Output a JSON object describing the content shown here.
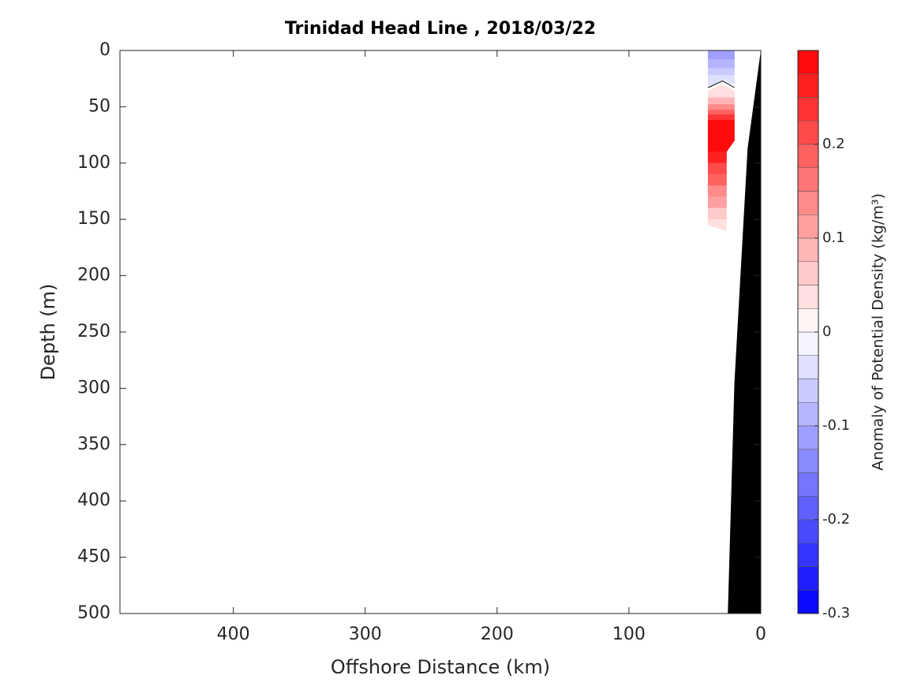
{
  "chart_data": {
    "type": "contour",
    "title": "Trinidad Head Line , 2018/03/22",
    "xlabel": "Offshore Distance (km)",
    "ylabel": "Depth (m)",
    "xlim": [
      486,
      0
    ],
    "xticks": [
      400,
      300,
      200,
      100,
      0
    ],
    "ylim": [
      0,
      500
    ],
    "yticks": [
      0,
      50,
      100,
      150,
      200,
      250,
      300,
      350,
      400,
      450,
      500
    ],
    "colorbar_label": "Anomaly of Potential Density (kg/m³)",
    "clim": [
      -0.3,
      0.3
    ],
    "cticks": [
      0.2,
      0.1,
      0,
      -0.1,
      -0.2,
      -0.3
    ],
    "cmap": [
      "#0000ff",
      "#ffffff",
      "#ff0000"
    ],
    "colorbar_levels": [
      -0.3,
      -0.275,
      -0.25,
      -0.225,
      -0.2,
      -0.175,
      -0.15,
      -0.125,
      -0.1,
      -0.075,
      -0.05,
      -0.025,
      0,
      0.025,
      0.05,
      0.075,
      0.1,
      0.125,
      0.15,
      0.175,
      0.2,
      0.225,
      0.25,
      0.275,
      0.3
    ],
    "regions": [
      {
        "value": -0.1125,
        "x": [
          40,
          20,
          20,
          40
        ],
        "y": [
          0,
          0,
          8,
          8
        ]
      },
      {
        "value": -0.0875,
        "x": [
          40,
          20,
          20,
          40
        ],
        "y": [
          8,
          8,
          16,
          16
        ]
      },
      {
        "value": -0.0625,
        "x": [
          40,
          20,
          20,
          40
        ],
        "y": [
          16,
          16,
          22,
          22
        ]
      },
      {
        "value": -0.0375,
        "x": [
          40,
          20,
          20,
          29,
          40
        ],
        "y": [
          22,
          22,
          30,
          26,
          32
        ]
      },
      {
        "value": 0.0375,
        "x": [
          40,
          29,
          20,
          20,
          40
        ],
        "y": [
          36,
          30,
          36,
          42,
          42
        ]
      },
      {
        "value": 0.0875,
        "x": [
          40,
          20,
          20,
          40
        ],
        "y": [
          42,
          42,
          48,
          48
        ]
      },
      {
        "value": 0.1375,
        "x": [
          40,
          20,
          20,
          40
        ],
        "y": [
          48,
          48,
          53,
          53
        ]
      },
      {
        "value": 0.1875,
        "x": [
          40,
          20,
          20,
          40
        ],
        "y": [
          53,
          53,
          57,
          57
        ]
      },
      {
        "value": 0.2375,
        "x": [
          40,
          20,
          20,
          40
        ],
        "y": [
          57,
          57,
          62,
          62
        ]
      },
      {
        "value": 0.2875,
        "x": [
          40,
          20,
          20,
          26,
          40
        ],
        "y": [
          62,
          62,
          80,
          90,
          90
        ]
      },
      {
        "value": 0.2625,
        "x": [
          40,
          26,
          26,
          40
        ],
        "y": [
          90,
          90,
          100,
          100
        ]
      },
      {
        "value": 0.2125,
        "x": [
          40,
          26,
          26,
          40
        ],
        "y": [
          100,
          100,
          110,
          110
        ]
      },
      {
        "value": 0.1875,
        "x": [
          40,
          26,
          26,
          40
        ],
        "y": [
          110,
          110,
          120,
          120
        ]
      },
      {
        "value": 0.1375,
        "x": [
          40,
          26,
          26,
          40
        ],
        "y": [
          120,
          120,
          130,
          130
        ]
      },
      {
        "value": 0.1125,
        "x": [
          40,
          26,
          26,
          40
        ],
        "y": [
          130,
          130,
          140,
          140
        ]
      },
      {
        "value": 0.0625,
        "x": [
          40,
          26,
          26,
          40
        ],
        "y": [
          140,
          140,
          150,
          150
        ]
      },
      {
        "value": 0.0375,
        "x": [
          40,
          26,
          26,
          40
        ],
        "y": [
          150,
          150,
          160,
          155
        ]
      }
    ],
    "zero_contour": {
      "x": [
        40,
        29,
        20
      ],
      "y": [
        33,
        27,
        33
      ]
    },
    "bottom": {
      "x": [
        0,
        10,
        20,
        25,
        0
      ],
      "y": [
        0,
        87,
        295,
        500,
        500
      ]
    }
  }
}
